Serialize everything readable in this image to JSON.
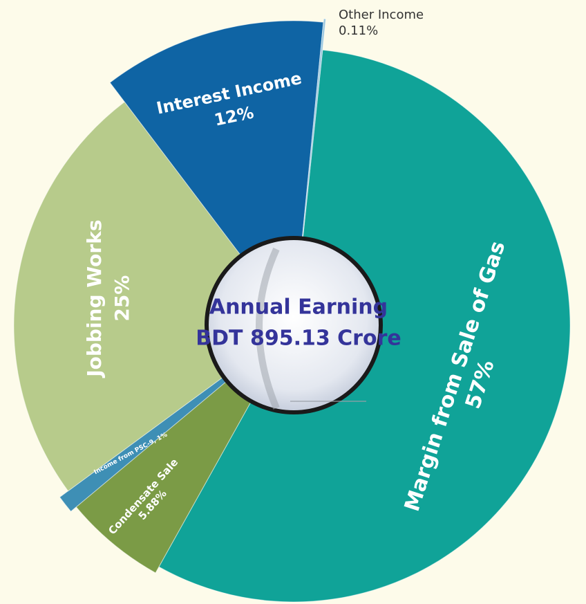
{
  "chart_data": {
    "type": "pie",
    "categories": [
      "Margin from Sale of Gas",
      "Condensate Sale",
      "Income from PSC-9,",
      "Jobbing Works",
      "Interest Income",
      "Other Income"
    ],
    "values": [
      57,
      5.88,
      1,
      25,
      12,
      0.11
    ],
    "value_labels": [
      "57%",
      "5.88%",
      "1%",
      "25%",
      "12%",
      "0.11%"
    ],
    "colors": [
      "#10a398",
      "#7b9b46",
      "#3e8fb5",
      "#b7cb8b",
      "#0f64a4",
      "#9cc8de"
    ],
    "center_text": [
      "Annual Earning",
      "BDT 895.13 Crore"
    ]
  }
}
